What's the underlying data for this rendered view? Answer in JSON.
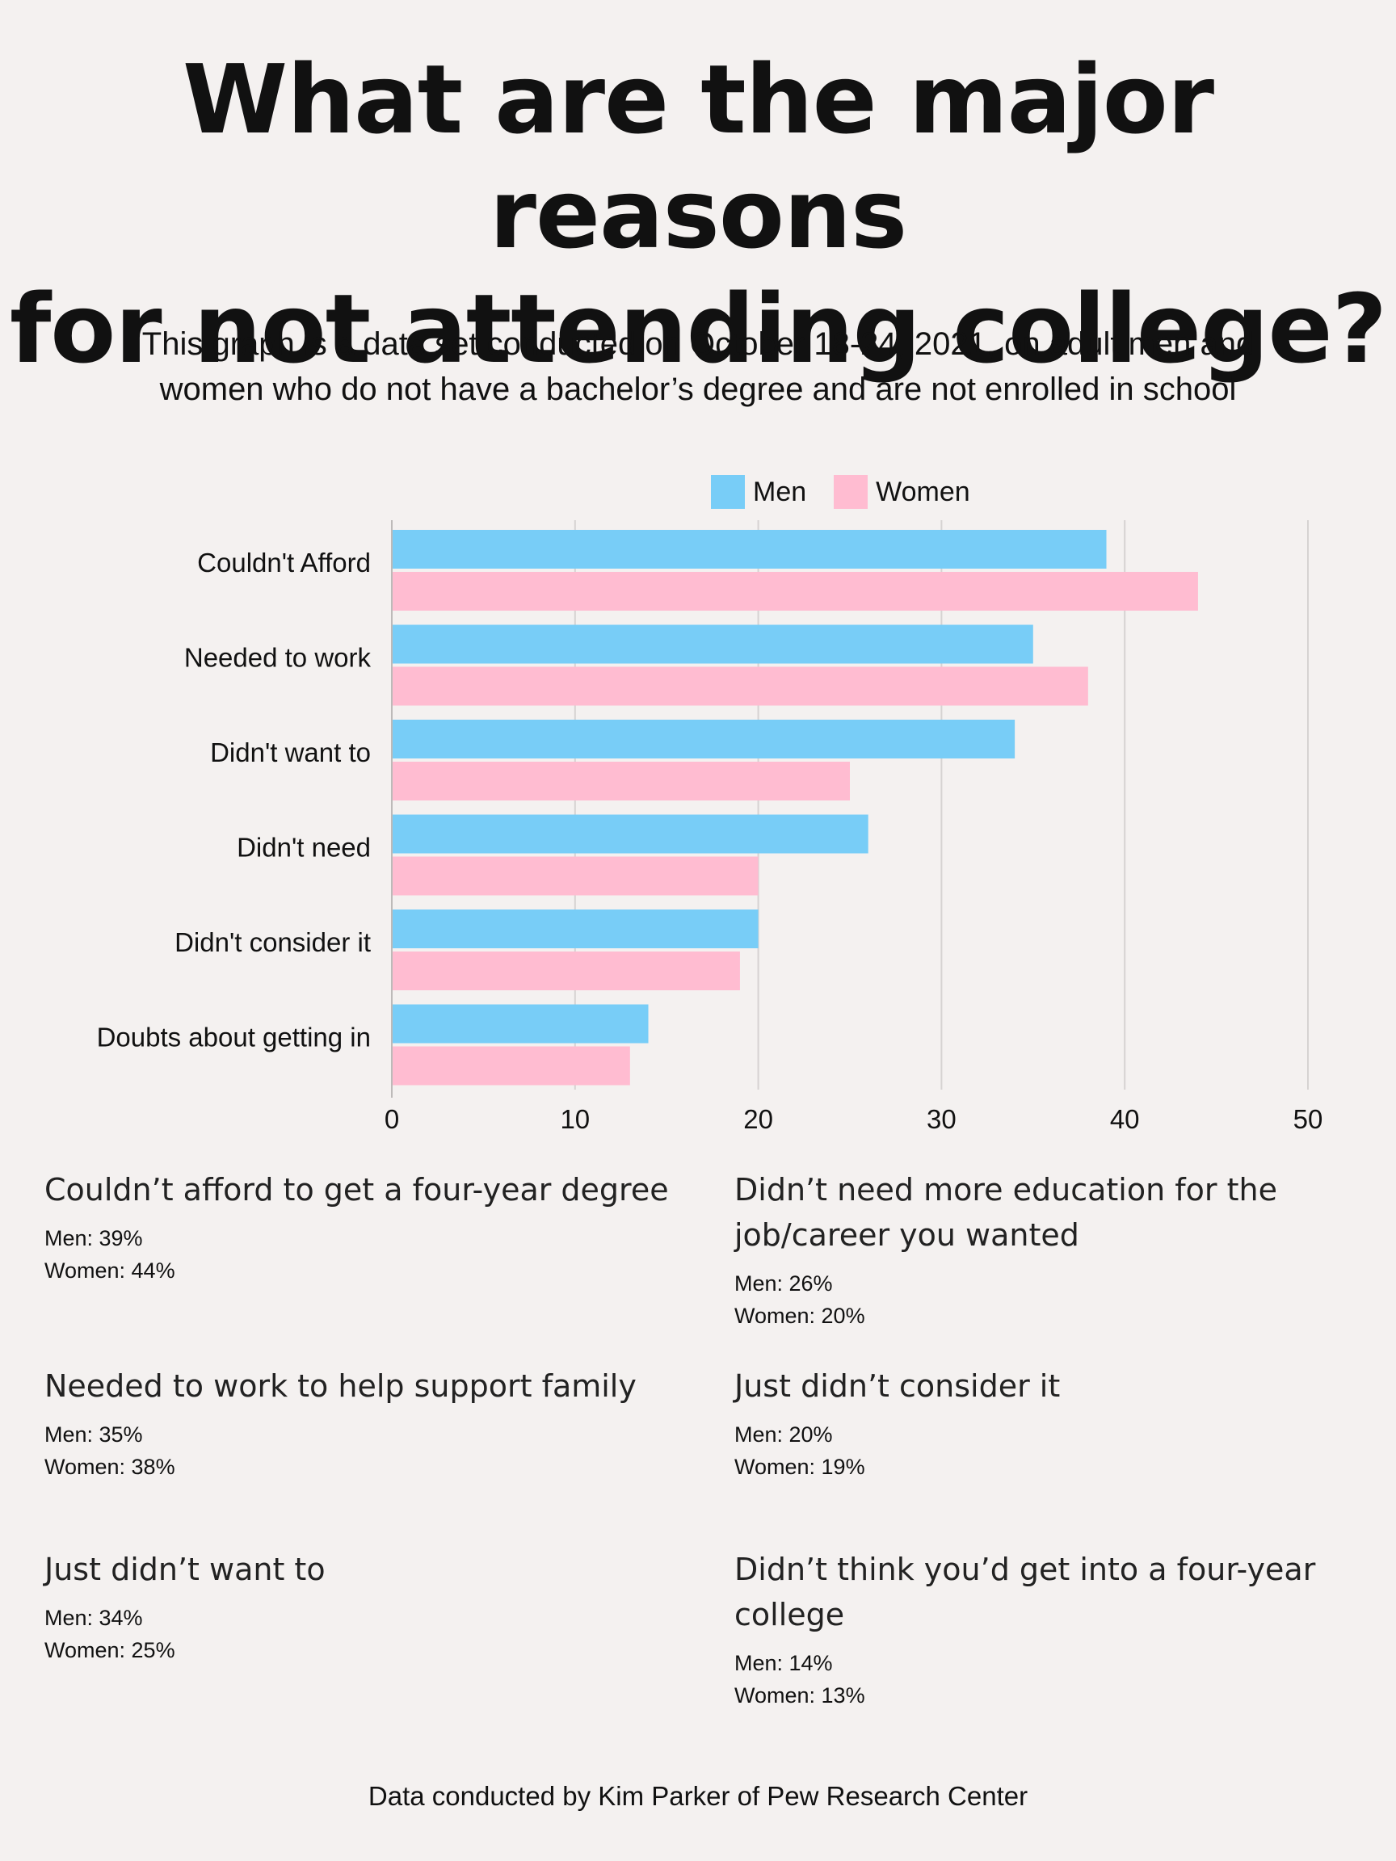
{
  "title": {
    "line1": "What are the major reasons",
    "line2": "for not attending college?"
  },
  "subtitle": {
    "line1": "This graph is a data set conducted on October 18-24, 2021, on adult men and",
    "line2": "women who do not have a bachelor’s degree and are not enrolled in school"
  },
  "legend": {
    "men": "Men",
    "women": "Women"
  },
  "colors": {
    "men": "#78cdf7",
    "women": "#ffbcd1",
    "grid": "#d6d3d2",
    "axis": "#bdbab9",
    "background": "#f4f1f0"
  },
  "chart_data": {
    "type": "bar",
    "orientation": "horizontal",
    "categories": [
      "Couldn't Afford",
      "Needed to work",
      "Didn't want to",
      "Didn't need",
      "Didn't consider it",
      "Doubts about getting in"
    ],
    "series": [
      {
        "name": "Men",
        "values": [
          39,
          35,
          34,
          26,
          20,
          14
        ]
      },
      {
        "name": "Women",
        "values": [
          44,
          38,
          25,
          20,
          19,
          13
        ]
      }
    ],
    "xlim": [
      0,
      50
    ],
    "xticks": [
      "0",
      "10",
      "20",
      "30",
      "40",
      "50"
    ],
    "grid": true,
    "legend_position": "top"
  },
  "details": [
    {
      "heading_lines": [
        "Couldn’t afford to get a four-year degree"
      ],
      "men": "Men: 39%",
      "women": "Women: 44%"
    },
    {
      "heading_lines": [
        "Didn’t need more education for the",
        "job/career you wanted"
      ],
      "men": "Men: 26%",
      "women": "Women: 20%"
    },
    {
      "heading_lines": [
        "Needed to work to help support family"
      ],
      "men": "Men: 35%",
      "women": "Women: 38%"
    },
    {
      "heading_lines": [
        "Just didn’t consider it"
      ],
      "men": "Men: 20%",
      "women": "Women: 19%"
    },
    {
      "heading_lines": [
        "Just didn’t want to"
      ],
      "men": "Men: 34%",
      "women": "Women: 25%"
    },
    {
      "heading_lines": [
        "Didn’t think you’d get into a four-year college"
      ],
      "men": "Men: 14%",
      "women": "Women: 13%"
    }
  ],
  "source": "Data conducted by Kim Parker of Pew Research Center"
}
